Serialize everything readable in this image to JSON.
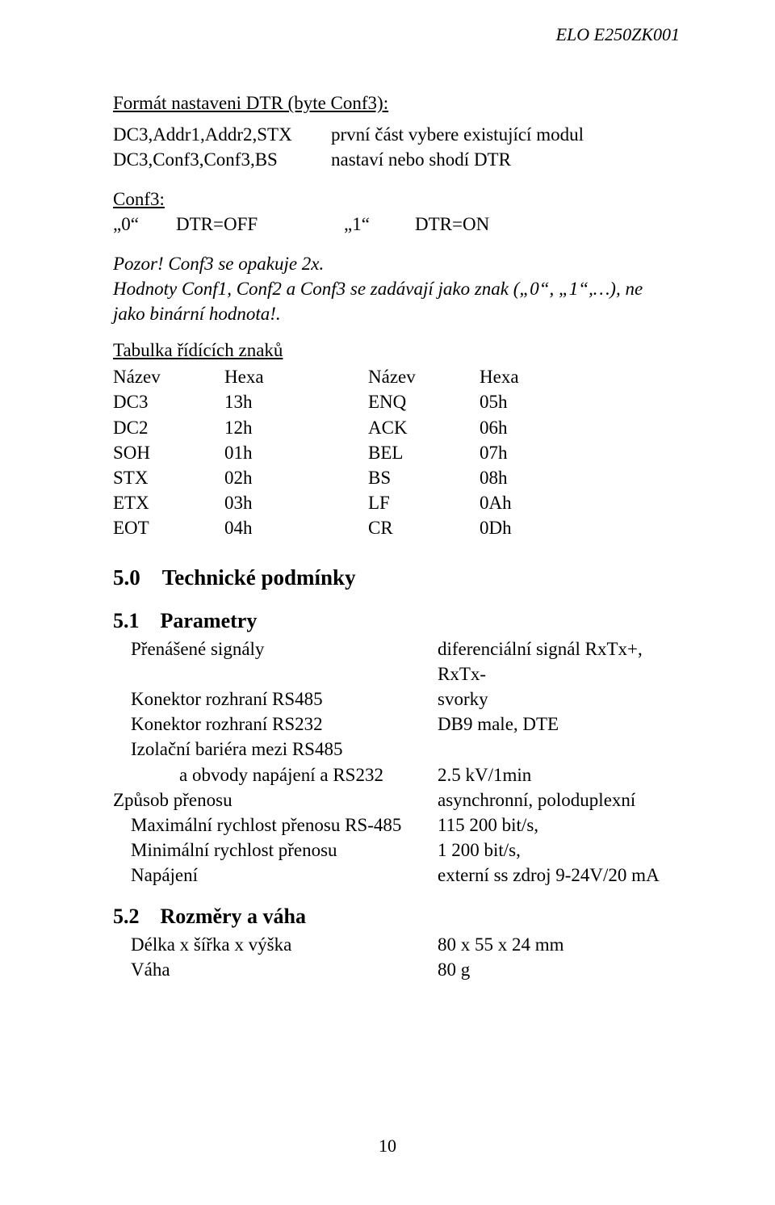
{
  "doc_header": "ELO E250ZK001",
  "fmt_title": "Formát nastaveni DTR (byte Conf3):",
  "defs": [
    {
      "k": "DC3,Addr1,Addr2,STX",
      "v": "první část vybere existující modul"
    },
    {
      "k": "DC3,Conf3,Conf3,BS",
      "v": "nastaví nebo shodí DTR"
    }
  ],
  "conf3_label": "Conf3:",
  "conf3_row": {
    "c1": "„0“",
    "c2": "DTR=OFF",
    "c3": "„1“",
    "c4": "DTR=ON"
  },
  "note_line1": "Pozor! Conf3 se opakuje 2x.",
  "note_line2": "Hodnoty Conf1, Conf2 a Conf3 se zadávají jako znak („0“, „1“,…), ne jako binární hodnota!.",
  "ctrl_title": "Tabulka řídících znaků",
  "ctrl_header": {
    "n1": "Název",
    "h1": "Hexa",
    "n2": "Název",
    "h2": "Hexa"
  },
  "ctrl_rows": [
    {
      "n1": "DC3",
      "h1": "13h",
      "n2": "ENQ",
      "h2": "05h"
    },
    {
      "n1": "DC2",
      "h1": "12h",
      "n2": "ACK",
      "h2": "06h"
    },
    {
      "n1": "SOH",
      "h1": "01h",
      "n2": "BEL",
      "h2": "07h"
    },
    {
      "n1": "STX",
      "h1": "02h",
      "n2": "BS",
      "h2": "08h"
    },
    {
      "n1": "ETX",
      "h1": "03h",
      "n2": "LF",
      "h2": "0Ah"
    },
    {
      "n1": "EOT",
      "h1": "04h",
      "n2": "CR",
      "h2": "0Dh"
    }
  ],
  "sec5": {
    "num": "5.0",
    "title": "Technické podmínky"
  },
  "sec51": {
    "num": "5.1",
    "title": "Parametry"
  },
  "params": [
    {
      "label": "Přenášené signály",
      "value": "diferenciální signál RxTx+, RxTx-",
      "sub": false
    },
    {
      "label": "Konektor rozhraní RS485",
      "value": "svorky",
      "sub": false
    },
    {
      "label": "Konektor rozhraní RS232",
      "value": "DB9 male, DTE",
      "sub": false
    },
    {
      "label": "Izolační bariéra mezi RS485",
      "value": "",
      "sub": false
    },
    {
      "label": "a obvody napájení a RS232",
      "value": "2.5 kV/1min",
      "sub": true
    },
    {
      "label": "Způsob přenosu",
      "value": "asynchronní, poloduplexní",
      "sub": false,
      "outdent": true
    },
    {
      "label": "Maximální rychlost přenosu RS-485",
      "value": "115 200 bit/s,",
      "sub": false
    },
    {
      "label": "Minimální rychlost přenosu",
      "value": "1 200 bit/s,",
      "sub": false
    },
    {
      "label": "Napájení",
      "value": "externí ss zdroj 9-24V/20 mA",
      "sub": false
    }
  ],
  "sec52": {
    "num": "5.2",
    "title": "Rozměry a váha"
  },
  "dims": [
    {
      "label": "Délka x šířka x výška",
      "value": "80 x 55 x 24 mm"
    },
    {
      "label": "Váha",
      "value": "80 g"
    }
  ],
  "page_number": "10"
}
